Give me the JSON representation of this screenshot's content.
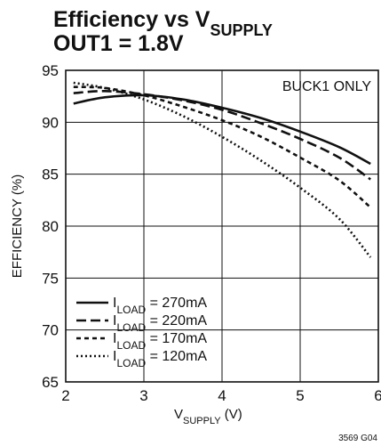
{
  "chart_data": {
    "type": "line",
    "title_line1": {
      "text": "Efficiency vs V",
      "subscript": "SUPPLY"
    },
    "title_line2": "OUT1 = 1.8V",
    "xlabel": {
      "text": "V",
      "subscript": "SUPPLY",
      "suffix": " (V)"
    },
    "ylabel": "EFFICIENCY (%)",
    "xlim": [
      2,
      6
    ],
    "ylim": [
      65,
      95
    ],
    "xticks": [
      2,
      3,
      4,
      5,
      6
    ],
    "yticks": [
      65,
      70,
      75,
      80,
      85,
      90,
      95
    ],
    "grid": true,
    "annotation": "BUCK1 ONLY",
    "figure_id": "3569 G04",
    "legend_position": "bottom-left",
    "series": [
      {
        "label_prefix": "I",
        "label_subscript": "LOAD",
        "label_suffix": " = 270mA",
        "style": "solid",
        "x": [
          2.1,
          2.5,
          3.0,
          3.5,
          4.0,
          4.5,
          5.0,
          5.5,
          5.9
        ],
        "y": [
          91.8,
          92.4,
          92.6,
          92.2,
          91.4,
          90.4,
          89.1,
          87.6,
          86.0
        ]
      },
      {
        "label_prefix": "I",
        "label_subscript": "LOAD",
        "label_suffix": " = 220mA",
        "style": "dashed",
        "x": [
          2.1,
          2.5,
          3.0,
          3.5,
          4.0,
          4.5,
          5.0,
          5.5,
          5.9
        ],
        "y": [
          92.8,
          93.0,
          92.7,
          92.1,
          91.2,
          89.9,
          88.4,
          86.6,
          84.5
        ]
      },
      {
        "label_prefix": "I",
        "label_subscript": "LOAD",
        "label_suffix": " = 170mA",
        "style": "short-dashed",
        "x": [
          2.1,
          2.5,
          3.0,
          3.5,
          4.0,
          4.5,
          5.0,
          5.5,
          5.9
        ],
        "y": [
          93.4,
          93.3,
          92.6,
          91.5,
          90.2,
          88.6,
          86.6,
          84.4,
          81.8
        ]
      },
      {
        "label_prefix": "I",
        "label_subscript": "LOAD",
        "label_suffix": " = 120mA",
        "style": "dotted",
        "x": [
          2.1,
          2.5,
          3.0,
          3.5,
          4.0,
          4.5,
          5.0,
          5.5,
          5.9
        ],
        "y": [
          93.8,
          93.3,
          92.2,
          90.6,
          88.6,
          86.3,
          83.7,
          80.7,
          77.0
        ]
      }
    ]
  }
}
